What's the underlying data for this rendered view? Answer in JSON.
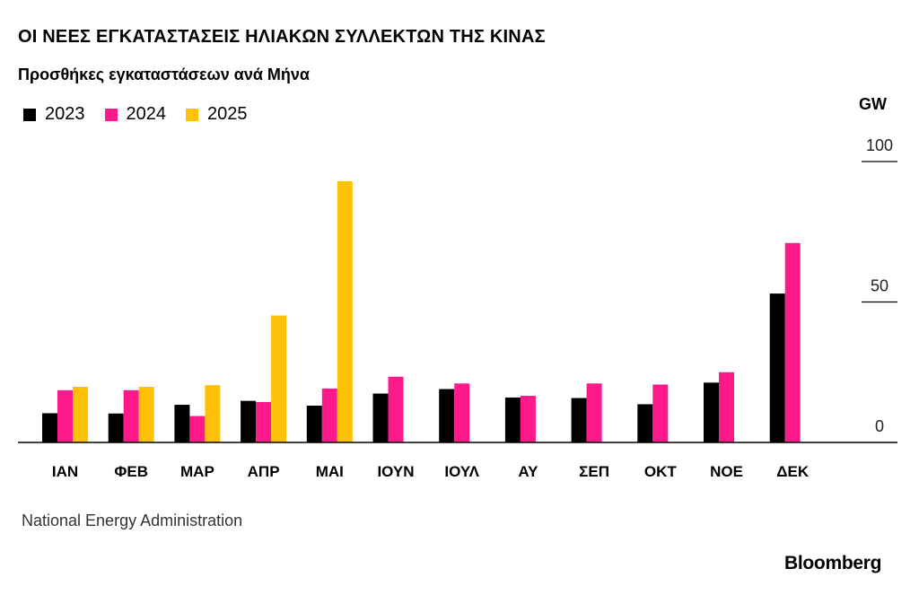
{
  "chart_data": {
    "type": "bar",
    "title": "ΟΙ ΝΕΕΣ ΕΓΚΑΤΑΣΤΑΣΕΙΣ ΗΛΙΑΚΩΝ ΣΥΛΛΕΚΤΩΝ ΤΗΣ ΚΙΝΑΣ",
    "subtitle": "Προσθήκες εγκαταστάσεων ανά Μήνα",
    "unit": "GW",
    "categories": [
      "ΙΑΝ",
      "ΦΕΒ",
      "ΜΑΡ",
      "ΑΠΡ",
      "ΜΑΙ",
      "ΙΟΥΝ",
      "ΙΟΥΛ",
      "ΑΥ",
      "ΣΕΠ",
      "ΟΚΤ",
      "ΝΟΕ",
      "ΔΕΚ"
    ],
    "series": [
      {
        "name": "2023",
        "color": "#000000",
        "values": [
          10.4,
          10.3,
          13.4,
          14.8,
          13.1,
          17.4,
          19.0,
          16.0,
          15.8,
          13.6,
          21.3,
          53.0
        ]
      },
      {
        "name": "2024",
        "color": "#ff1a8c",
        "values": [
          18.6,
          18.6,
          9.4,
          14.4,
          19.2,
          23.4,
          21.0,
          16.6,
          21.0,
          20.6,
          25.0,
          71.0
        ]
      },
      {
        "name": "2025",
        "color": "#ffc107",
        "values": [
          19.8,
          19.8,
          20.4,
          45.2,
          93.0,
          null,
          null,
          null,
          null,
          null,
          null,
          null
        ]
      }
    ],
    "yticks": [
      "100",
      "50",
      "0"
    ],
    "ylim": [
      0,
      100
    ],
    "legend_position": "top-left",
    "source": "National Energy Administration",
    "brand": "Bloomberg"
  }
}
